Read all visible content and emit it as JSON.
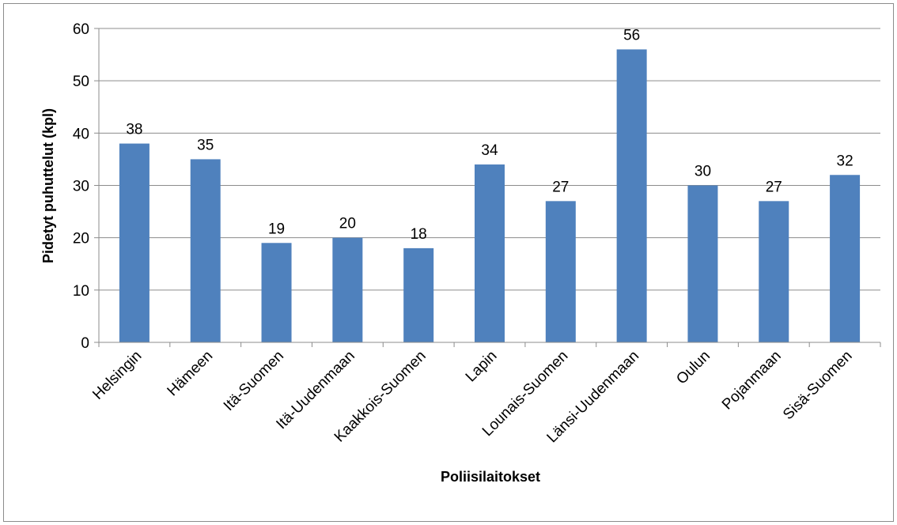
{
  "chart_data": {
    "type": "bar",
    "categories": [
      "Helsingin",
      "Hämeen",
      "Itä-Suomen",
      "Itä-Uudenmaan",
      "Kaakkois-Suomen",
      "Lapin",
      "Lounais-Suomen",
      "Länsi-Uudenmaan",
      "Oulun",
      "Pojanmaan",
      "Sisä-Suomen"
    ],
    "values": [
      38,
      35,
      19,
      20,
      18,
      34,
      27,
      56,
      30,
      27,
      32
    ],
    "ylim": [
      0,
      60
    ],
    "yticks": [
      0,
      10,
      20,
      30,
      40,
      50,
      60
    ],
    "xlabel": "Poliisilaitokset",
    "ylabel": "Pidetyt puhuttelut (kpl)",
    "grid": true,
    "legend": "none",
    "bar_color": "#4f81bd"
  }
}
